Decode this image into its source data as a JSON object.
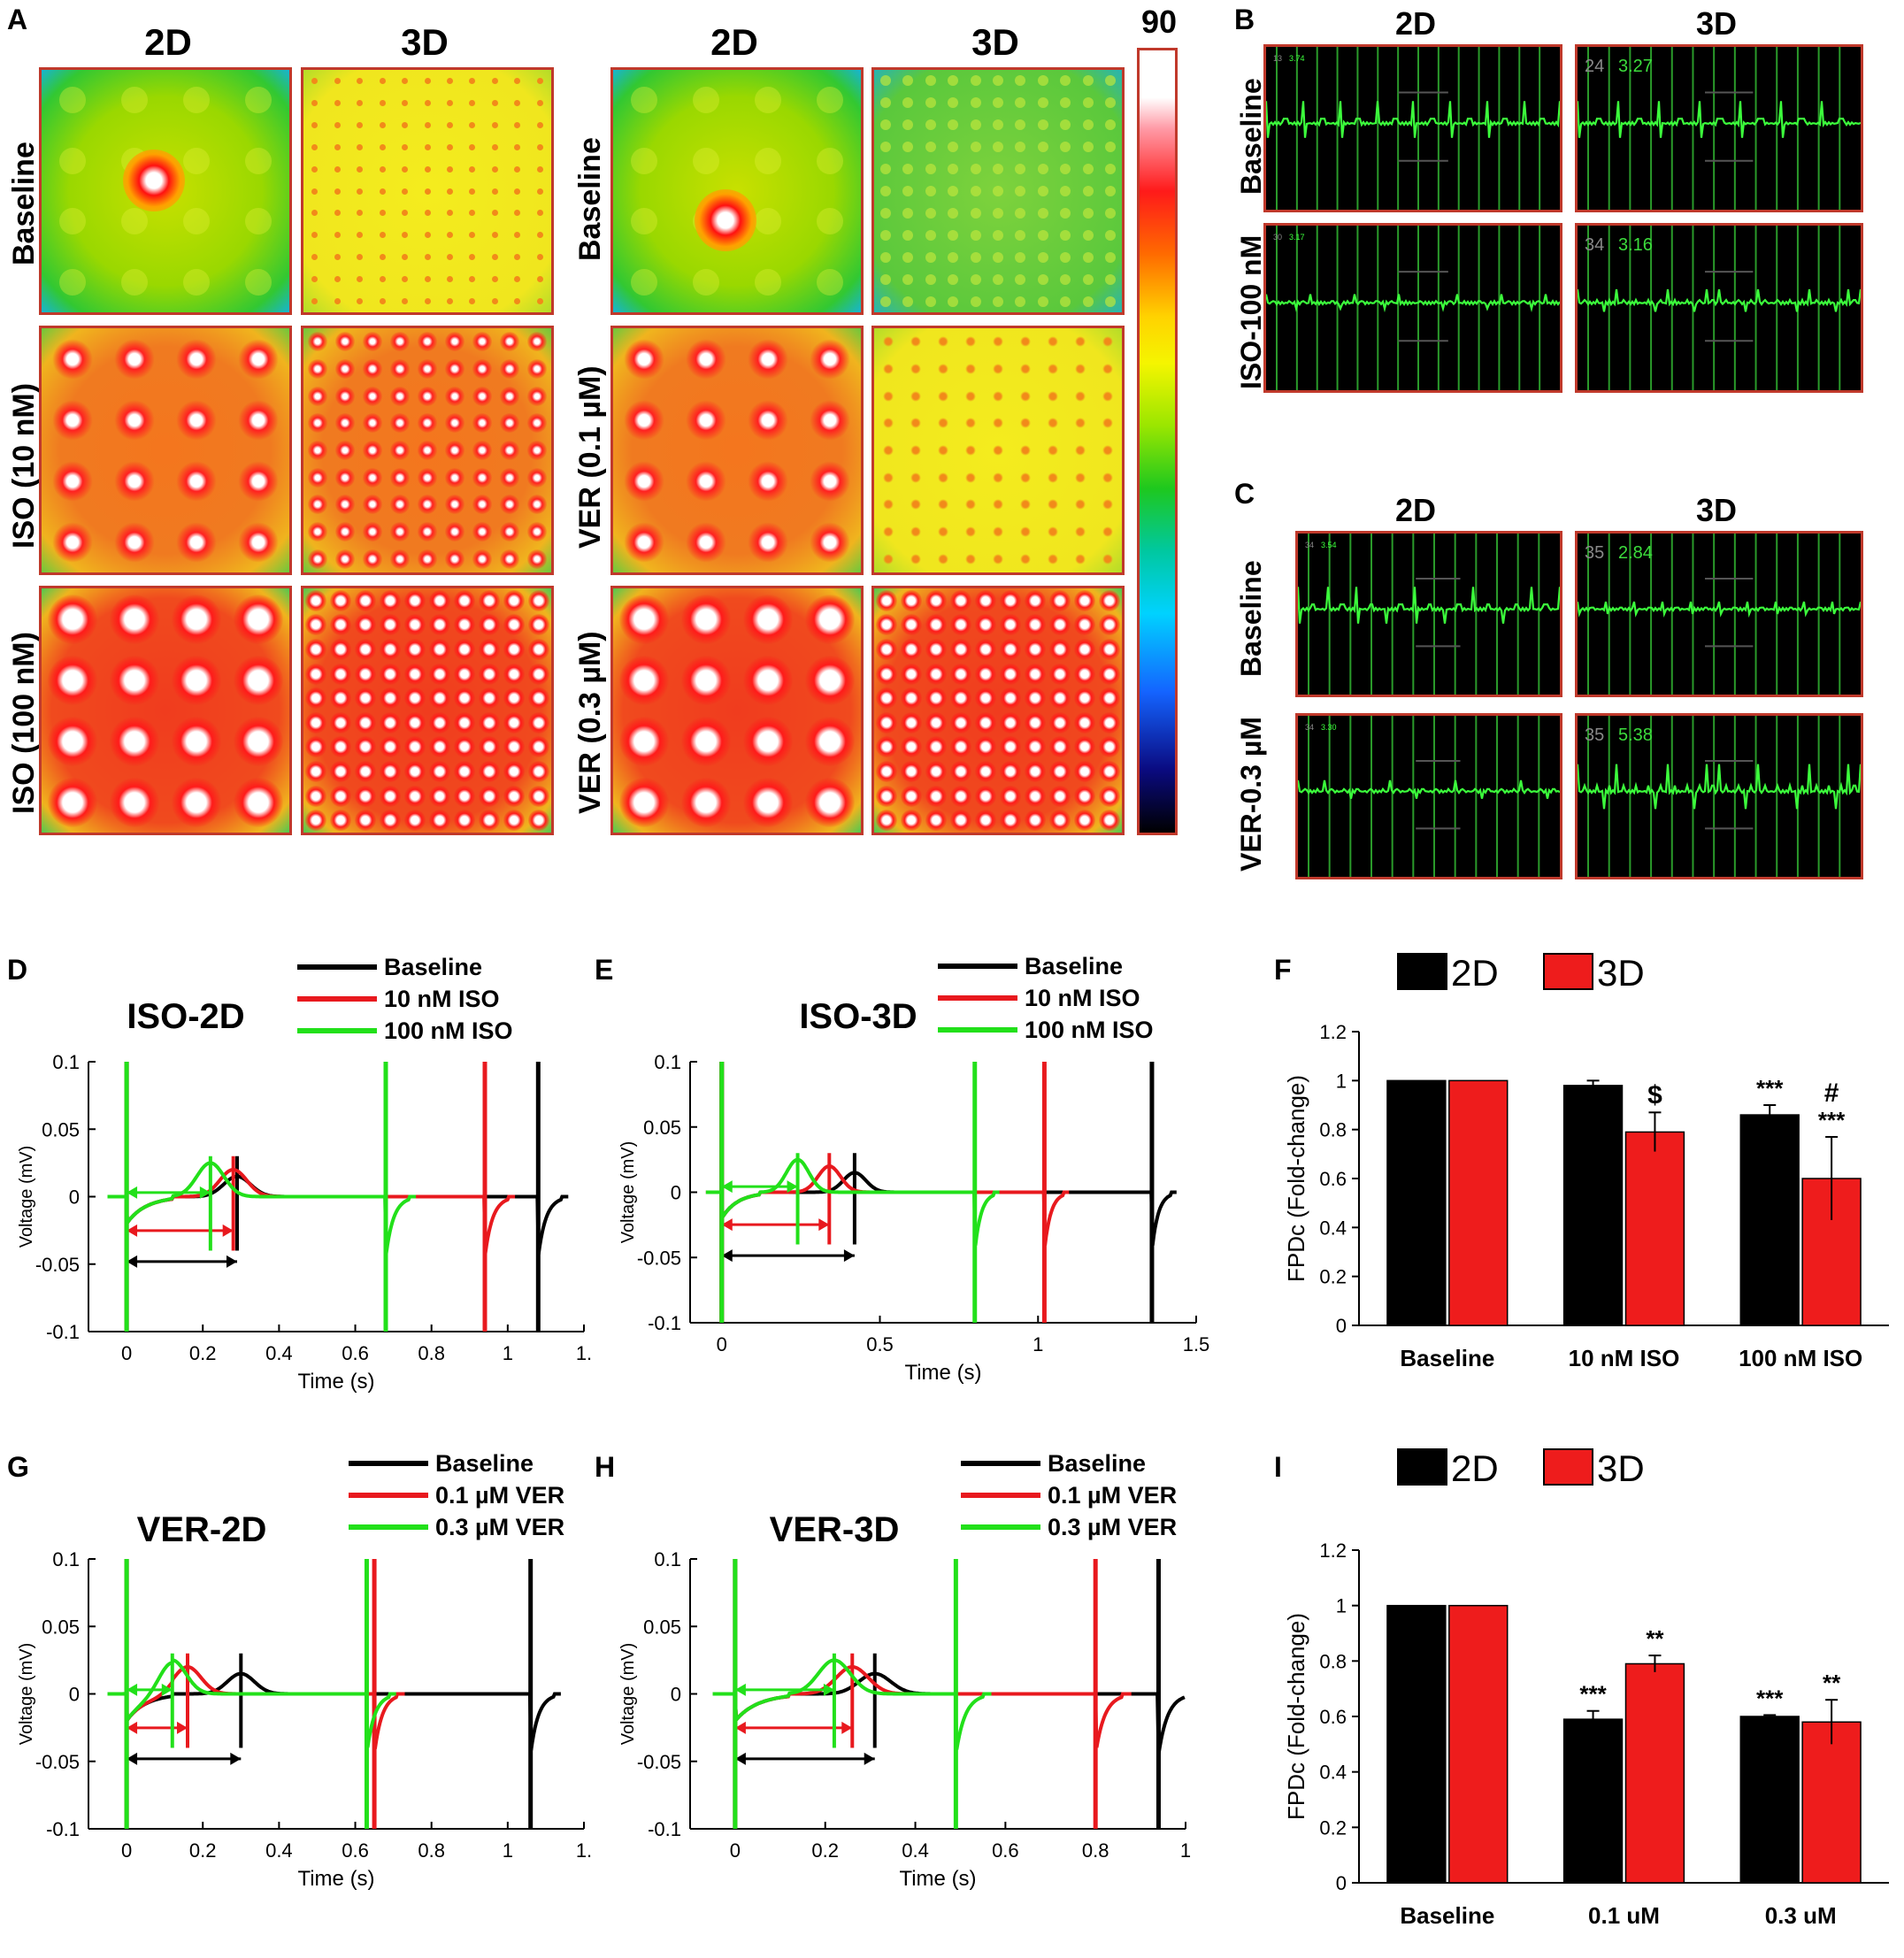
{
  "panel_letters": {
    "A": "A",
    "B": "B",
    "C": "C",
    "D": "D",
    "E": "E",
    "F": "F",
    "G": "G",
    "H": "H",
    "I": "I"
  },
  "panelA": {
    "col_2d": "2D",
    "col_3d": "3D",
    "left_rows": [
      "Baseline",
      "ISO (10 nM)",
      "ISO (100 nM)"
    ],
    "right_rows": [
      "Baseline",
      "VER (0.1 µM)",
      "VER (0.3 µM)"
    ],
    "colorbar_max": "90"
  },
  "panelB": {
    "col_2d": "2D",
    "col_3d": "3D",
    "rows": [
      "Baseline",
      "ISO-100 nM"
    ],
    "overlays": [
      {
        "a": "13",
        "b": "3.74"
      },
      {
        "a": "24",
        "b": "3.27"
      },
      {
        "a": "30",
        "b": "3.17"
      },
      {
        "a": "34",
        "b": "3.16"
      }
    ]
  },
  "panelC": {
    "col_2d": "2D",
    "col_3d": "3D",
    "rows": [
      "Baseline",
      "VER-0.3 µM"
    ],
    "overlays": [
      {
        "a": "34",
        "b": "3.54"
      },
      {
        "a": "35",
        "b": "2.84"
      },
      {
        "a": "34",
        "b": "3.30"
      },
      {
        "a": "35",
        "b": "5.38"
      }
    ]
  },
  "colors": {
    "black": "#000000",
    "red": "#e8191e",
    "green": "#22e01a",
    "ecg_green": "#3cff3c",
    "bar_red": "#ee1c1c"
  },
  "chart_data": [
    {
      "id": "D",
      "type": "line",
      "title": "ISO-2D",
      "legend": [
        "Baseline",
        "10 nM ISO",
        "100 nM ISO"
      ],
      "xlabel": "Time (s)",
      "ylabel": "Voltage (mV)",
      "xlim": [
        -0.1,
        1.2
      ],
      "ylim": [
        -0.1,
        0.1
      ],
      "xticks": [
        "0",
        "0.2",
        "0.4",
        "0.6",
        "0.8",
        "1",
        "1."
      ],
      "yticks": [
        "0.1",
        "0.05",
        "0",
        "-0.05",
        "-0.1"
      ],
      "spike_times": {
        "Baseline": [
          0,
          1.08
        ],
        "10 nM ISO": [
          0,
          0.94
        ],
        "100 nM ISO": [
          0,
          0.68
        ]
      },
      "fpd": {
        "Baseline": 0.29,
        "10 nM ISO": 0.28,
        "100 nM ISO": 0.22
      }
    },
    {
      "id": "E",
      "type": "line",
      "title": "ISO-3D",
      "legend": [
        "Baseline",
        "10 nM ISO",
        "100 nM ISO"
      ],
      "xlabel": "Time (s)",
      "ylabel": "Voltage (mV)",
      "xlim": [
        -0.1,
        1.5
      ],
      "ylim": [
        -0.1,
        0.1
      ],
      "xticks": [
        "0",
        "0.5",
        "1",
        "1.5"
      ],
      "yticks": [
        "0.1",
        "0.05",
        "0",
        "-0.05",
        "-0.1"
      ],
      "spike_times": {
        "Baseline": [
          0,
          1.36
        ],
        "10 nM ISO": [
          0,
          1.02
        ],
        "100 nM ISO": [
          0,
          0.8
        ]
      },
      "fpd": {
        "Baseline": 0.42,
        "10 nM ISO": 0.34,
        "100 nM ISO": 0.24
      }
    },
    {
      "id": "F",
      "type": "bar",
      "title": "",
      "legend": [
        "2D",
        "3D"
      ],
      "ylabel": "FPDc (Fold-change)",
      "ylim": [
        0,
        1.2
      ],
      "yticks": [
        "0",
        "0.2",
        "0.4",
        "0.6",
        "0.8",
        "1",
        "1.2"
      ],
      "categories": [
        "Baseline",
        "10 nM ISO",
        "100 nM ISO"
      ],
      "series": [
        {
          "name": "2D",
          "values": [
            1.0,
            0.98,
            0.86
          ],
          "errors": [
            0.0,
            0.02,
            0.04
          ]
        },
        {
          "name": "3D",
          "values": [
            1.0,
            0.79,
            0.6
          ],
          "errors": [
            0.0,
            0.08,
            0.17
          ]
        }
      ],
      "annotations": [
        {
          "cat": 2,
          "series": 0,
          "text": "***"
        },
        {
          "cat": 1,
          "series": 1,
          "text": "$"
        },
        {
          "cat": 2,
          "series": 1,
          "text": "#"
        },
        {
          "cat": 2,
          "series": 1,
          "text": "***"
        }
      ]
    },
    {
      "id": "G",
      "type": "line",
      "title": "VER-2D",
      "legend": [
        "Baseline",
        "0.1 µM VER",
        "0.3 µM VER"
      ],
      "xlabel": "Time (s)",
      "ylabel": "Voltage (mV)",
      "xlim": [
        -0.1,
        1.2
      ],
      "ylim": [
        -0.1,
        0.1
      ],
      "xticks": [
        "0",
        "0.2",
        "0.4",
        "0.6",
        "0.8",
        "1",
        "1."
      ],
      "yticks": [
        "0.1",
        "0.05",
        "0",
        "-0.05",
        "-0.1"
      ],
      "spike_times": {
        "Baseline": [
          0,
          1.06
        ],
        "0.1 µM VER": [
          0,
          0.65
        ],
        "0.3 µM VER": [
          0,
          0.63
        ]
      },
      "fpd": {
        "Baseline": 0.3,
        "0.1 µM VER": 0.16,
        "0.3 µM VER": 0.12
      }
    },
    {
      "id": "H",
      "type": "line",
      "title": "VER-3D",
      "legend": [
        "Baseline",
        "0.1 µM VER",
        "0.3 µM VER"
      ],
      "xlabel": "Time (s)",
      "ylabel": "Voltage (mV)",
      "xlim": [
        -0.1,
        1.0
      ],
      "ylim": [
        -0.1,
        0.1
      ],
      "xticks": [
        "0",
        "0.2",
        "0.4",
        "0.6",
        "0.8",
        "1"
      ],
      "yticks": [
        "0.1",
        "0.05",
        "0",
        "-0.05",
        "-0.1"
      ],
      "spike_times": {
        "Baseline": [
          0,
          0.94
        ],
        "0.1 µM VER": [
          0,
          0.8
        ],
        "0.3 µM VER": [
          0,
          0.49
        ]
      },
      "fpd": {
        "Baseline": 0.31,
        "0.1 µM VER": 0.26,
        "0.3 µM VER": 0.22
      }
    },
    {
      "id": "I",
      "type": "bar",
      "title": "",
      "legend": [
        "2D",
        "3D"
      ],
      "ylabel": "FPDc (Fold-change)",
      "ylim": [
        0,
        1.2
      ],
      "yticks": [
        "0",
        "0.2",
        "0.4",
        "0.6",
        "0.8",
        "1",
        "1.2"
      ],
      "categories": [
        "Baseline",
        "0.1 uM",
        "0.3 uM"
      ],
      "series": [
        {
          "name": "2D",
          "values": [
            1.0,
            0.59,
            0.6
          ],
          "errors": [
            0.0,
            0.03,
            0.005
          ]
        },
        {
          "name": "3D",
          "values": [
            1.0,
            0.79,
            0.58
          ],
          "errors": [
            0.0,
            0.03,
            0.08
          ]
        }
      ],
      "annotations": [
        {
          "cat": 1,
          "series": 0,
          "text": "***"
        },
        {
          "cat": 1,
          "series": 1,
          "text": "**"
        },
        {
          "cat": 2,
          "series": 0,
          "text": "***"
        },
        {
          "cat": 2,
          "series": 1,
          "text": "**"
        }
      ]
    }
  ]
}
